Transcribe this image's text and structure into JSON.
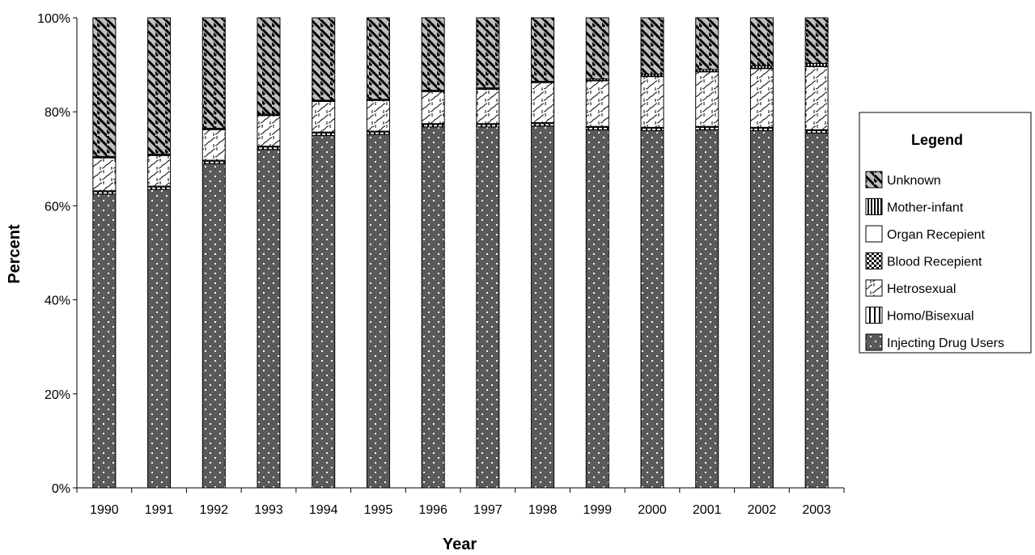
{
  "chart_data": {
    "type": "bar",
    "stacked": true,
    "percent_stacked": true,
    "categories": [
      "1990",
      "1991",
      "1992",
      "1993",
      "1994",
      "1995",
      "1996",
      "1997",
      "1998",
      "1999",
      "2000",
      "2001",
      "2002",
      "2003"
    ],
    "series": [
      {
        "name": "Injecting Drug Users",
        "values": [
          62.5,
          63.5,
          69.0,
          72.0,
          75.0,
          75.2,
          76.8,
          76.8,
          77.0,
          76.2,
          76.0,
          76.2,
          76.0,
          75.5
        ]
      },
      {
        "name": "Homo/Bisexual",
        "values": [
          0.5,
          0.5,
          0.5,
          0.5,
          0.5,
          0.5,
          0.5,
          0.5,
          0.5,
          0.5,
          0.5,
          0.5,
          0.5,
          0.5
        ]
      },
      {
        "name": "Blood Recepient",
        "values": [
          0.2,
          0.2,
          0.2,
          0.2,
          0.2,
          0.2,
          0.2,
          0.2,
          0.2,
          0.2,
          0.2,
          0.2,
          0.2,
          0.2
        ]
      },
      {
        "name": "Hetrosexual",
        "values": [
          7.0,
          6.5,
          6.5,
          6.5,
          6.5,
          6.5,
          6.8,
          7.3,
          8.5,
          9.7,
          10.8,
          11.6,
          12.5,
          13.4
        ]
      },
      {
        "name": "Organ Recepient",
        "values": [
          0.1,
          0.1,
          0.1,
          0.1,
          0.1,
          0.1,
          0.1,
          0.1,
          0.1,
          0.1,
          0.1,
          0.1,
          0.1,
          0.1
        ]
      },
      {
        "name": "Mother-infant",
        "values": [
          0.2,
          0.2,
          0.2,
          0.2,
          0.2,
          0.2,
          0.2,
          0.2,
          0.2,
          0.3,
          0.4,
          0.4,
          0.5,
          0.6
        ]
      },
      {
        "name": "Unknown",
        "values": [
          29.5,
          29.0,
          23.5,
          20.5,
          17.5,
          17.3,
          15.4,
          14.9,
          13.5,
          13.0,
          12.0,
          11.0,
          10.2,
          9.7
        ]
      }
    ],
    "legend": {
      "title": "Legend",
      "placement": "right",
      "order": [
        "Unknown",
        "Mother-infant",
        "Organ Recepient",
        "Blood Recepient",
        "Hetrosexual",
        "Homo/Bisexual",
        "Injecting Drug Users"
      ]
    },
    "xlabel": "Year",
    "ylabel": "Percent",
    "ylim": [
      0,
      100
    ],
    "yticks": [
      "0%",
      "20%",
      "40%",
      "60%",
      "80%",
      "100%"
    ],
    "grid": false
  }
}
